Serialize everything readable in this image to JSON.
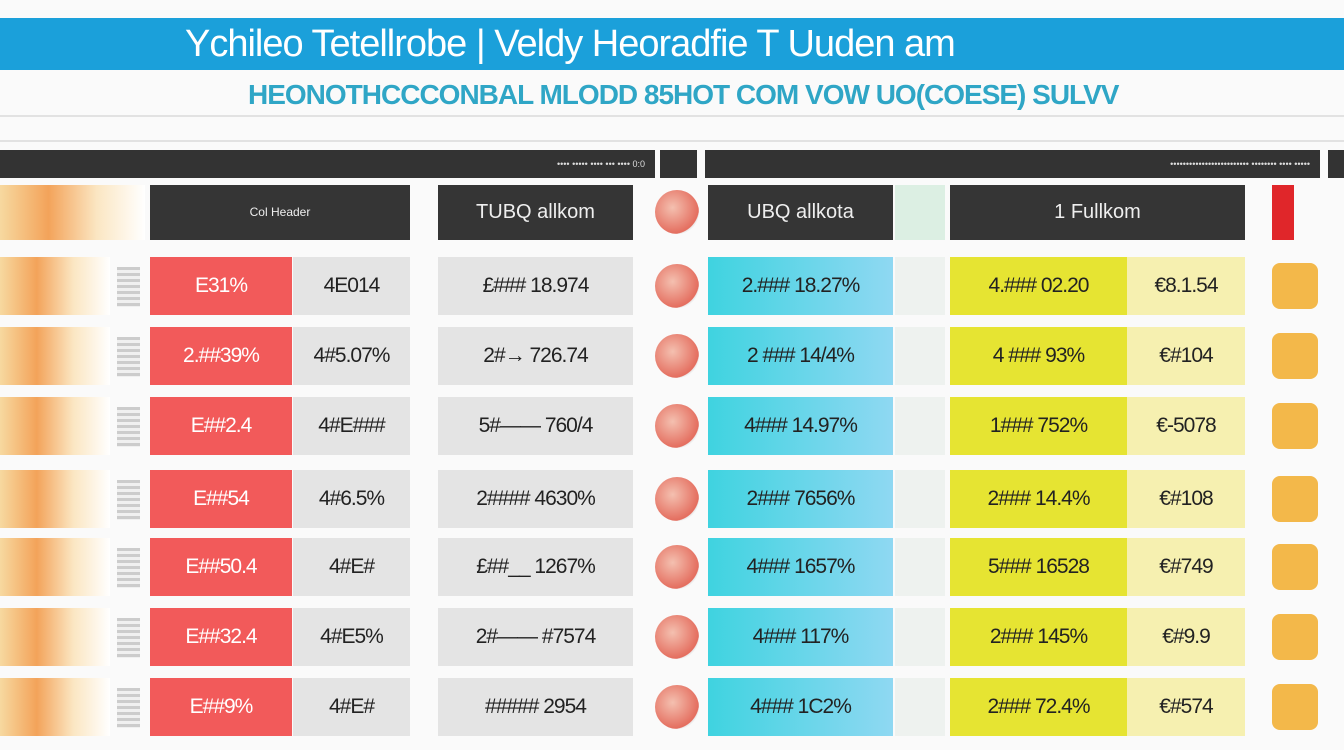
{
  "header": {
    "title": "Ychileo Tetellrobe | Veldy Heoradfie T Uuden am",
    "subtitle": "HEONOTHCCCONBAL MLODD 85HOT  COM VOW UO(COESE) SULVV"
  },
  "toolbar": {
    "left": "•••• ••••• •••• ••• •••• 0:0",
    "right": "•••••••••••••••••••••••••  •••••••• •••• •••••"
  },
  "columns": [
    "Col Header",
    "TUBQ allkom",
    "UBQ allkota",
    "1 Fullkom"
  ],
  "colors": {
    "accent": "#1ba0da",
    "red": "#f25a5a",
    "cyan": "#3fd3e0",
    "yellow": "#e6e432"
  },
  "rows": [
    {
      "a": "E31%",
      "b": "4E014",
      "c": "£### 18.974",
      "d": "2.### 18.27%",
      "e": "4.### 02.20",
      "f": "€8.1.54"
    },
    {
      "a": "2.##39%",
      "b": "4#5.07%",
      "c": "2#→ 726.74",
      "d": "2 ### 14/4%",
      "e": "4 ### 93%",
      "f": "€#104"
    },
    {
      "a": "E##2.4",
      "b": "4#E###",
      "c": "5#—— 760/4",
      "d": "4### 14.97%",
      "e": "1### 752%",
      "f": "€-5078"
    },
    {
      "a": "E##54",
      "b": "4#6.5%",
      "c": "2#### 4630%",
      "d": "2### 7656%",
      "e": "2### 14.4%",
      "f": "€#108"
    },
    {
      "a": "E##50.4",
      "b": "4#E#",
      "c": "£##__ 1267%",
      "d": "4### 1657%",
      "e": "5### 16528",
      "f": "€#749"
    },
    {
      "a": "E##32.4",
      "b": "4#E5%",
      "c": "2#—— #7574",
      "d": "4### 117%",
      "e": "2### 145%",
      "f": "€#9.9"
    },
    {
      "a": "E##9%",
      "b": "4#E#",
      "c": "##### 2954",
      "d": "4### 1C2%",
      "e": "2### 72.4%",
      "f": "€#574"
    }
  ]
}
